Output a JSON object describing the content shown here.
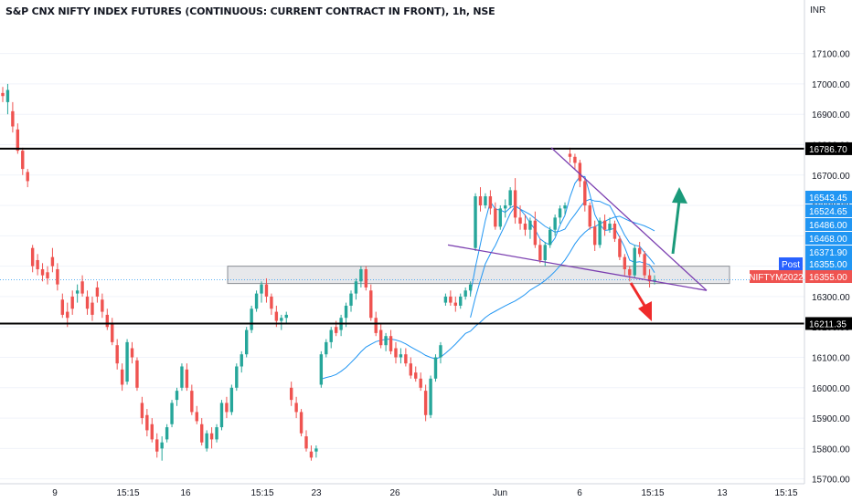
{
  "header": {
    "title": "S&P CNX NIFTY INDEX FUTURES (CONTINUOUS: CURRENT CONTRACT IN FRONT), 1h, NSE"
  },
  "currency": "INR",
  "colors": {
    "up": "#26a69a",
    "down": "#ef5350",
    "ma": "#2196f3",
    "trend": "#7b3fb0",
    "level": "#000000",
    "zone_fill": "#d7d9de",
    "zone_border": "#8a8d94",
    "arrow_up": "#1a9a7a",
    "arrow_down": "#ef2b2b",
    "post": "#2962ff",
    "grid": "#f0f3fa"
  },
  "price_axis": {
    "ticks": [
      {
        "value": 17100,
        "label": "17100.00"
      },
      {
        "value": 17000,
        "label": "17000.00"
      },
      {
        "value": 16900,
        "label": "16900.00"
      },
      {
        "value": 16800,
        "label": "16800.00"
      },
      {
        "value": 16700,
        "label": "16700.00"
      },
      {
        "value": 16600,
        "label": "16600.00"
      },
      {
        "value": 16500,
        "label": "16500.00"
      },
      {
        "value": 16400,
        "label": "16400.00"
      },
      {
        "value": 16300,
        "label": "16300.00"
      },
      {
        "value": 16200,
        "label": "16200.00"
      },
      {
        "value": 16100,
        "label": "16100.00"
      },
      {
        "value": 16000,
        "label": "16000.00"
      },
      {
        "value": 15900,
        "label": "15900.00"
      },
      {
        "value": 15800,
        "label": "15800.00"
      },
      {
        "value": 15700,
        "label": "15700.00"
      }
    ],
    "range": [
      15690,
      17210
    ]
  },
  "time_axis": {
    "labels": [
      "9",
      "15:15",
      "16",
      "15:15",
      "23",
      "26",
      "Jun",
      "6",
      "15:15",
      "13",
      "15:15"
    ]
  },
  "horizontal_levels": [
    {
      "value": 16786.7,
      "label": "16786.70"
    },
    {
      "value": 16211.35,
      "label": "16211.35"
    }
  ],
  "price_labels": [
    {
      "value": 16543.45,
      "label": "16543.45",
      "style": "ma"
    },
    {
      "value": 16524.65,
      "label": "16524.65",
      "style": "ma"
    },
    {
      "value": 16486.0,
      "label": "16486.00",
      "style": "ma"
    },
    {
      "value": 16468.0,
      "label": "16468.00",
      "style": "ma"
    },
    {
      "value": 16371.9,
      "label": "16371.90",
      "style": "ma"
    },
    {
      "value": 16355.0,
      "label": "16355.00",
      "style": "ma",
      "tag": "Post"
    },
    {
      "value": 16355.0,
      "label": "16355.00",
      "style": "last",
      "tag": "NIFTYM2022"
    }
  ],
  "support_zone": {
    "low": 16343,
    "high": 16400
  },
  "chart_data": {
    "type": "candlestick",
    "symbol": "NIFTYM2022",
    "last_price": 16355.0,
    "candles_ohlc": [
      [
        16970,
        16990,
        16940,
        16960
      ],
      [
        16940,
        17000,
        16900,
        16980
      ],
      [
        16910,
        16940,
        16840,
        16860
      ],
      [
        16850,
        16870,
        16770,
        16780
      ],
      [
        16780,
        16790,
        16700,
        16720
      ],
      [
        16710,
        16720,
        16660,
        16680
      ],
      [
        16460,
        16470,
        16380,
        16400
      ],
      [
        16420,
        16440,
        16370,
        16390
      ],
      [
        16390,
        16410,
        16350,
        16370
      ],
      [
        16380,
        16400,
        16340,
        16360
      ],
      [
        16430,
        16460,
        16380,
        16400
      ],
      [
        16390,
        16410,
        16320,
        16340
      ],
      [
        16290,
        16310,
        16230,
        16240
      ],
      [
        16250,
        16280,
        16200,
        16230
      ],
      [
        16300,
        16320,
        16240,
        16260
      ],
      [
        16310,
        16340,
        16280,
        16320
      ],
      [
        16350,
        16370,
        16300,
        16310
      ],
      [
        16300,
        16320,
        16240,
        16260
      ],
      [
        16280,
        16300,
        16220,
        16240
      ],
      [
        16330,
        16350,
        16280,
        16300
      ],
      [
        16290,
        16310,
        16230,
        16250
      ],
      [
        16240,
        16260,
        16190,
        16200
      ],
      [
        16210,
        16230,
        16140,
        16150
      ],
      [
        16140,
        16160,
        16060,
        16080
      ],
      [
        16060,
        16080,
        15990,
        16010
      ],
      [
        16020,
        16160,
        16010,
        16150
      ],
      [
        16130,
        16150,
        16080,
        16100
      ],
      [
        16090,
        16100,
        15990,
        16000
      ],
      [
        15950,
        15970,
        15880,
        15900
      ],
      [
        15910,
        15930,
        15840,
        15860
      ],
      [
        15880,
        15900,
        15820,
        15830
      ],
      [
        15830,
        15850,
        15770,
        15790
      ],
      [
        15800,
        15840,
        15760,
        15820
      ],
      [
        15830,
        15880,
        15820,
        15870
      ],
      [
        15880,
        15960,
        15870,
        15950
      ],
      [
        15960,
        16000,
        15940,
        15990
      ],
      [
        16000,
        16080,
        15990,
        16070
      ],
      [
        16060,
        16080,
        15990,
        16000
      ],
      [
        15990,
        16010,
        15910,
        15920
      ],
      [
        15920,
        15940,
        15880,
        15890
      ],
      [
        15880,
        15900,
        15810,
        15820
      ],
      [
        15800,
        15860,
        15790,
        15850
      ],
      [
        15850,
        15870,
        15800,
        15830
      ],
      [
        15830,
        15880,
        15820,
        15870
      ],
      [
        15870,
        15960,
        15860,
        15950
      ],
      [
        15950,
        15970,
        15900,
        15920
      ],
      [
        15920,
        16010,
        15910,
        16000
      ],
      [
        16000,
        16080,
        15990,
        16070
      ],
      [
        16070,
        16120,
        16050,
        16110
      ],
      [
        16110,
        16200,
        16100,
        16190
      ],
      [
        16190,
        16270,
        16180,
        16260
      ],
      [
        16260,
        16320,
        16250,
        16310
      ],
      [
        16310,
        16350,
        16280,
        16340
      ],
      [
        16340,
        16360,
        16280,
        16300
      ],
      [
        16300,
        16310,
        16240,
        16260
      ],
      [
        16250,
        16270,
        16200,
        16220
      ],
      [
        16220,
        16240,
        16190,
        16230
      ],
      [
        16230,
        16250,
        16210,
        16240
      ],
      [
        16000,
        16020,
        15940,
        15960
      ],
      [
        15950,
        15970,
        15900,
        15920
      ],
      [
        15920,
        15930,
        15840,
        15850
      ],
      [
        15840,
        15860,
        15790,
        15800
      ],
      [
        15790,
        15810,
        15760,
        15770
      ],
      [
        15790,
        15810,
        15770,
        15800
      ],
      [
        16010,
        16120,
        16000,
        16110
      ],
      [
        16110,
        16160,
        16100,
        16150
      ],
      [
        16150,
        16200,
        16130,
        16190
      ],
      [
        16200,
        16220,
        16170,
        16180
      ],
      [
        16190,
        16240,
        16170,
        16230
      ],
      [
        16230,
        16280,
        16200,
        16270
      ],
      [
        16270,
        16320,
        16250,
        16310
      ],
      [
        16310,
        16360,
        16290,
        16350
      ],
      [
        16350,
        16400,
        16330,
        16390
      ],
      [
        16390,
        16400,
        16320,
        16330
      ],
      [
        16320,
        16340,
        16220,
        16230
      ],
      [
        16230,
        16250,
        16170,
        16180
      ],
      [
        16190,
        16210,
        16130,
        16140
      ],
      [
        16140,
        16180,
        16120,
        16170
      ],
      [
        16170,
        16190,
        16110,
        16120
      ],
      [
        16130,
        16150,
        16080,
        16100
      ],
      [
        16100,
        16130,
        16080,
        16110
      ],
      [
        16110,
        16130,
        16070,
        16080
      ],
      [
        16080,
        16100,
        16030,
        16040
      ],
      [
        16050,
        16070,
        16020,
        16030
      ],
      [
        16030,
        16050,
        15990,
        16000
      ],
      [
        15990,
        16010,
        15890,
        15910
      ],
      [
        15910,
        16040,
        15900,
        16030
      ],
      [
        16030,
        16110,
        16020,
        16100
      ],
      [
        16100,
        16150,
        16080,
        16140
      ],
      [
        16280,
        16310,
        16270,
        16300
      ],
      [
        16300,
        16320,
        16270,
        16280
      ],
      [
        16280,
        16300,
        16250,
        16270
      ],
      [
        16270,
        16310,
        16260,
        16300
      ],
      [
        16300,
        16330,
        16290,
        16320
      ],
      [
        16320,
        16350,
        16300,
        16340
      ],
      [
        16460,
        16640,
        16450,
        16630
      ],
      [
        16630,
        16660,
        16580,
        16600
      ],
      [
        16600,
        16640,
        16590,
        16630
      ],
      [
        16630,
        16650,
        16570,
        16590
      ],
      [
        16590,
        16610,
        16520,
        16530
      ],
      [
        16530,
        16600,
        16520,
        16590
      ],
      [
        16590,
        16620,
        16560,
        16600
      ],
      [
        16600,
        16660,
        16590,
        16650
      ],
      [
        16650,
        16690,
        16540,
        16560
      ],
      [
        16560,
        16600,
        16520,
        16540
      ],
      [
        16540,
        16570,
        16500,
        16520
      ],
      [
        16520,
        16560,
        16490,
        16550
      ],
      [
        16550,
        16580,
        16460,
        16470
      ],
      [
        16470,
        16490,
        16410,
        16420
      ],
      [
        16420,
        16480,
        16400,
        16470
      ],
      [
        16470,
        16530,
        16460,
        16520
      ],
      [
        16520,
        16570,
        16500,
        16560
      ],
      [
        16560,
        16600,
        16540,
        16590
      ],
      [
        16590,
        16610,
        16570,
        16600
      ],
      [
        16770,
        16790,
        16740,
        16760
      ],
      [
        16760,
        16770,
        16720,
        16740
      ],
      [
        16740,
        16750,
        16660,
        16680
      ],
      [
        16680,
        16690,
        16580,
        16600
      ],
      [
        16600,
        16610,
        16520,
        16530
      ],
      [
        16530,
        16550,
        16450,
        16470
      ],
      [
        16470,
        16560,
        16460,
        16550
      ],
      [
        16550,
        16570,
        16500,
        16520
      ],
      [
        16520,
        16560,
        16510,
        16540
      ],
      [
        16540,
        16550,
        16480,
        16490
      ],
      [
        16490,
        16500,
        16420,
        16430
      ],
      [
        16430,
        16440,
        16370,
        16390
      ],
      [
        16390,
        16400,
        16350,
        16370
      ],
      [
        16370,
        16470,
        16360,
        16460
      ],
      [
        16460,
        16480,
        16430,
        16440
      ],
      [
        16440,
        16450,
        16360,
        16370
      ],
      [
        16370,
        16390,
        16330,
        16350
      ],
      [
        16350,
        16370,
        16340,
        16355
      ]
    ]
  }
}
